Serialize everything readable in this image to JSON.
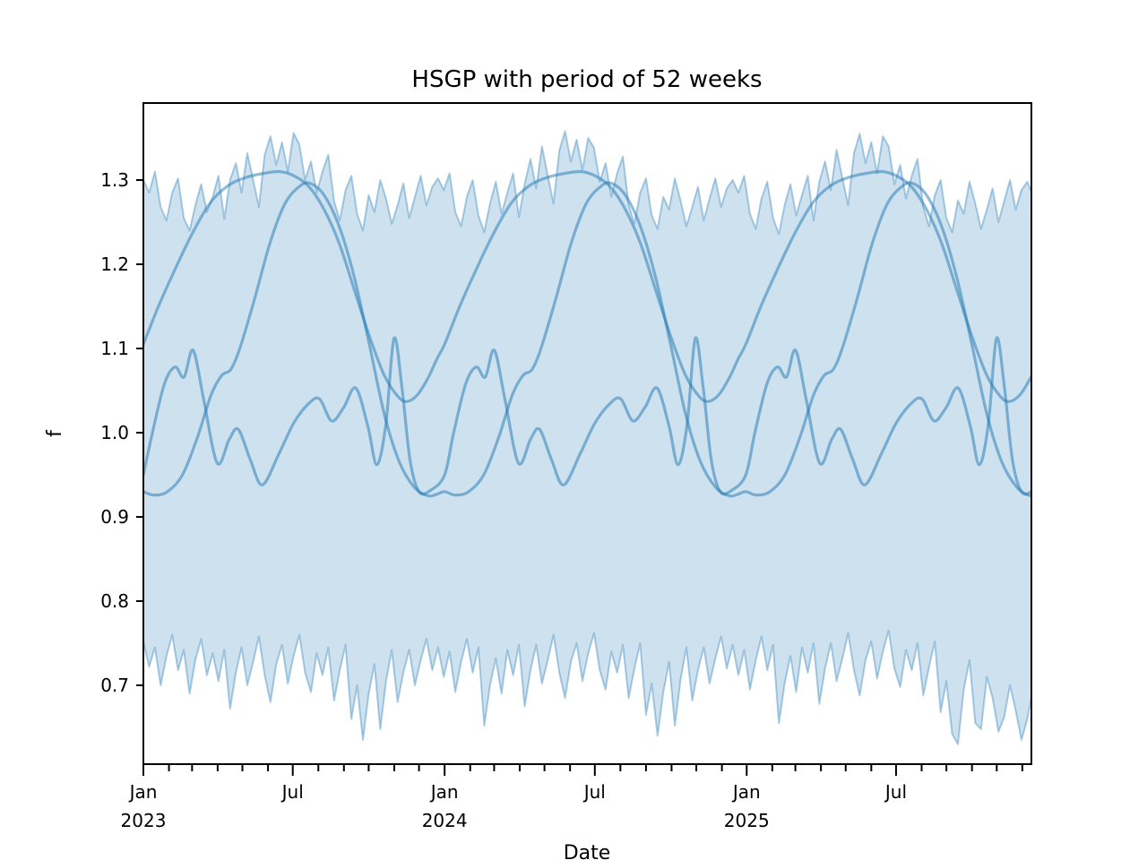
{
  "figure": {
    "title": "HSGP with period of 52 weeks",
    "xlabel": "Date",
    "ylabel": "f"
  },
  "chart_data": {
    "type": "line",
    "title": "HSGP with period of 52 weeks",
    "xlabel": "Date",
    "ylabel": "f",
    "description": "Posterior of a periodic Hilbert-space GP: a jagged light-blue HDI band (weekly resolution) plus three smooth periodic posterior sample curves repeating every 52 weeks over 2023-2025.",
    "ylim": [
      0.6064,
      1.3915
    ],
    "yticks": [
      0.7,
      0.8,
      0.9,
      1.0,
      1.1,
      1.2,
      1.3
    ],
    "x_epoch": "2023-01-01",
    "x_domain_days": [
      0,
      1076
    ],
    "grid": false,
    "legend": "none",
    "colors": {
      "base": "#1f77b4",
      "band_fill": "rgba(31,119,180,0.22)",
      "band_edge": "rgba(31,119,180,0.36)",
      "sample_line": "rgba(31,119,180,0.50)",
      "axis": "#000000"
    },
    "xticks_major": [
      {
        "day": 0,
        "label": "Jan",
        "sub": "2023"
      },
      {
        "day": 181,
        "label": "Jul",
        "sub": ""
      },
      {
        "day": 365,
        "label": "Jan",
        "sub": "2024"
      },
      {
        "day": 547,
        "label": "Jul",
        "sub": ""
      },
      {
        "day": 731,
        "label": "Jan",
        "sub": "2025"
      },
      {
        "day": 912,
        "label": "Jul",
        "sub": ""
      }
    ],
    "xticks_minor_days": [
      31,
      59,
      90,
      120,
      151,
      212,
      243,
      273,
      304,
      334,
      396,
      425,
      456,
      486,
      517,
      578,
      609,
      640,
      670,
      701,
      762,
      790,
      821,
      851,
      882,
      943,
      973,
      1004,
      1034,
      1065
    ],
    "band": {
      "name": "posterior-hdi-band",
      "sample_step_days": 7,
      "upper": [
        1.3,
        1.285,
        1.31,
        1.268,
        1.252,
        1.285,
        1.302,
        1.255,
        1.24,
        1.27,
        1.295,
        1.262,
        1.28,
        1.305,
        1.254,
        1.3,
        1.32,
        1.285,
        1.332,
        1.3,
        1.268,
        1.33,
        1.352,
        1.318,
        1.345,
        1.31,
        1.356,
        1.342,
        1.3,
        1.322,
        1.285,
        1.31,
        1.33,
        1.275,
        1.252,
        1.288,
        1.305,
        1.26,
        1.24,
        1.282,
        1.262,
        1.3,
        1.278,
        1.248,
        1.27,
        1.296,
        1.255,
        1.28,
        1.305,
        1.27,
        1.292,
        1.302,
        1.288,
        1.308,
        1.262,
        1.245,
        1.28,
        1.3,
        1.258,
        1.238,
        1.272,
        1.298,
        1.26,
        1.285,
        1.308,
        1.256,
        1.295,
        1.325,
        1.29,
        1.34,
        1.305,
        1.272,
        1.335,
        1.358,
        1.322,
        1.348,
        1.312,
        1.35,
        1.338,
        1.298,
        1.32,
        1.28,
        1.308,
        1.328,
        1.27,
        1.248,
        1.285,
        1.302,
        1.258,
        1.242,
        1.28,
        1.265,
        1.302,
        1.275,
        1.245,
        1.268,
        1.292,
        1.252,
        1.278,
        1.302,
        1.268,
        1.29,
        1.3,
        1.285,
        1.305,
        1.26,
        1.242,
        1.278,
        1.298,
        1.255,
        1.236,
        1.27,
        1.295,
        1.258,
        1.282,
        1.305,
        1.252,
        1.298,
        1.322,
        1.288,
        1.336,
        1.302,
        1.27,
        1.332,
        1.355,
        1.32,
        1.345,
        1.308,
        1.352,
        1.34,
        1.295,
        1.318,
        1.278,
        1.305,
        1.325,
        1.268,
        1.245,
        1.282,
        1.3,
        1.255,
        1.238,
        1.276,
        1.26,
        1.298,
        1.272,
        1.242,
        1.265,
        1.29,
        1.25,
        1.275,
        1.3,
        1.265,
        1.288,
        1.298,
        1.282,
        1.295,
        1.29
      ],
      "lower": [
        0.752,
        0.722,
        0.745,
        0.7,
        0.735,
        0.76,
        0.718,
        0.742,
        0.69,
        0.73,
        0.755,
        0.712,
        0.738,
        0.705,
        0.742,
        0.672,
        0.715,
        0.745,
        0.7,
        0.728,
        0.758,
        0.712,
        0.68,
        0.725,
        0.748,
        0.702,
        0.735,
        0.76,
        0.715,
        0.692,
        0.738,
        0.712,
        0.745,
        0.682,
        0.718,
        0.748,
        0.66,
        0.7,
        0.635,
        0.69,
        0.725,
        0.648,
        0.705,
        0.742,
        0.68,
        0.715,
        0.742,
        0.7,
        0.73,
        0.755,
        0.718,
        0.745,
        0.71,
        0.74,
        0.692,
        0.728,
        0.755,
        0.715,
        0.745,
        0.652,
        0.7,
        0.732,
        0.69,
        0.742,
        0.712,
        0.748,
        0.675,
        0.718,
        0.748,
        0.702,
        0.73,
        0.76,
        0.715,
        0.685,
        0.728,
        0.75,
        0.705,
        0.738,
        0.762,
        0.718,
        0.695,
        0.74,
        0.715,
        0.748,
        0.685,
        0.72,
        0.75,
        0.665,
        0.702,
        0.64,
        0.692,
        0.728,
        0.652,
        0.708,
        0.745,
        0.682,
        0.718,
        0.745,
        0.702,
        0.732,
        0.758,
        0.72,
        0.748,
        0.712,
        0.742,
        0.695,
        0.73,
        0.758,
        0.718,
        0.748,
        0.655,
        0.702,
        0.735,
        0.692,
        0.745,
        0.715,
        0.75,
        0.678,
        0.72,
        0.75,
        0.705,
        0.732,
        0.762,
        0.718,
        0.688,
        0.73,
        0.752,
        0.708,
        0.74,
        0.765,
        0.72,
        0.698,
        0.742,
        0.718,
        0.75,
        0.688,
        0.722,
        0.752,
        0.668,
        0.705,
        0.642,
        0.63,
        0.695,
        0.73,
        0.655,
        0.648,
        0.71,
        0.685,
        0.645,
        0.662,
        0.7,
        0.67,
        0.635,
        0.66,
        0.695,
        0.72,
        0.74
      ]
    },
    "samples": {
      "period_days": 365,
      "cycles": 3,
      "series": [
        {
          "name": "sample-broad",
          "profile": [
            [
              0.0,
              1.105
            ],
            [
              0.05,
              1.15
            ],
            [
              0.1,
              1.19
            ],
            [
              0.16,
              1.235
            ],
            [
              0.22,
              1.272
            ],
            [
              0.28,
              1.293
            ],
            [
              0.34,
              1.303
            ],
            [
              0.4,
              1.308
            ],
            [
              0.455,
              1.31
            ],
            [
              0.5,
              1.305
            ],
            [
              0.55,
              1.292
            ],
            [
              0.6,
              1.265
            ],
            [
              0.65,
              1.225
            ],
            [
              0.7,
              1.17
            ],
            [
              0.75,
              1.115
            ],
            [
              0.8,
              1.068
            ],
            [
              0.845,
              1.043
            ],
            [
              0.875,
              1.037
            ],
            [
              0.91,
              1.045
            ],
            [
              0.945,
              1.065
            ],
            [
              0.975,
              1.088
            ]
          ]
        },
        {
          "name": "sample-deep",
          "profile": [
            [
              0.0,
              0.93
            ],
            [
              0.035,
              0.926
            ],
            [
              0.08,
              0.93
            ],
            [
              0.13,
              0.95
            ],
            [
              0.18,
              0.995
            ],
            [
              0.225,
              1.045
            ],
            [
              0.26,
              1.068
            ],
            [
              0.29,
              1.075
            ],
            [
              0.32,
              1.1
            ],
            [
              0.37,
              1.16
            ],
            [
              0.42,
              1.225
            ],
            [
              0.47,
              1.272
            ],
            [
              0.52,
              1.293
            ],
            [
              0.555,
              1.296
            ],
            [
              0.6,
              1.282
            ],
            [
              0.65,
              1.245
            ],
            [
              0.7,
              1.185
            ],
            [
              0.75,
              1.105
            ],
            [
              0.8,
              1.022
            ],
            [
              0.85,
              0.965
            ],
            [
              0.9,
              0.935
            ],
            [
              0.945,
              0.925
            ],
            [
              0.975,
              0.927
            ]
          ]
        },
        {
          "name": "sample-wiggly",
          "profile": [
            [
              0.0,
              0.95
            ],
            [
              0.03,
              1.0
            ],
            [
              0.07,
              1.058
            ],
            [
              0.105,
              1.078
            ],
            [
              0.135,
              1.066
            ],
            [
              0.165,
              1.098
            ],
            [
              0.2,
              1.04
            ],
            [
              0.245,
              0.964
            ],
            [
              0.285,
              0.992
            ],
            [
              0.315,
              1.004
            ],
            [
              0.355,
              0.968
            ],
            [
              0.395,
              0.938
            ],
            [
              0.45,
              0.975
            ],
            [
              0.5,
              1.012
            ],
            [
              0.55,
              1.035
            ],
            [
              0.585,
              1.04
            ],
            [
              0.625,
              1.014
            ],
            [
              0.665,
              1.03
            ],
            [
              0.705,
              1.053
            ],
            [
              0.745,
              1.008
            ],
            [
              0.775,
              0.962
            ],
            [
              0.805,
              1.01
            ],
            [
              0.832,
              1.112
            ],
            [
              0.858,
              1.055
            ],
            [
              0.885,
              0.968
            ],
            [
              0.915,
              0.93
            ],
            [
              0.955,
              0.932
            ]
          ]
        }
      ]
    }
  }
}
